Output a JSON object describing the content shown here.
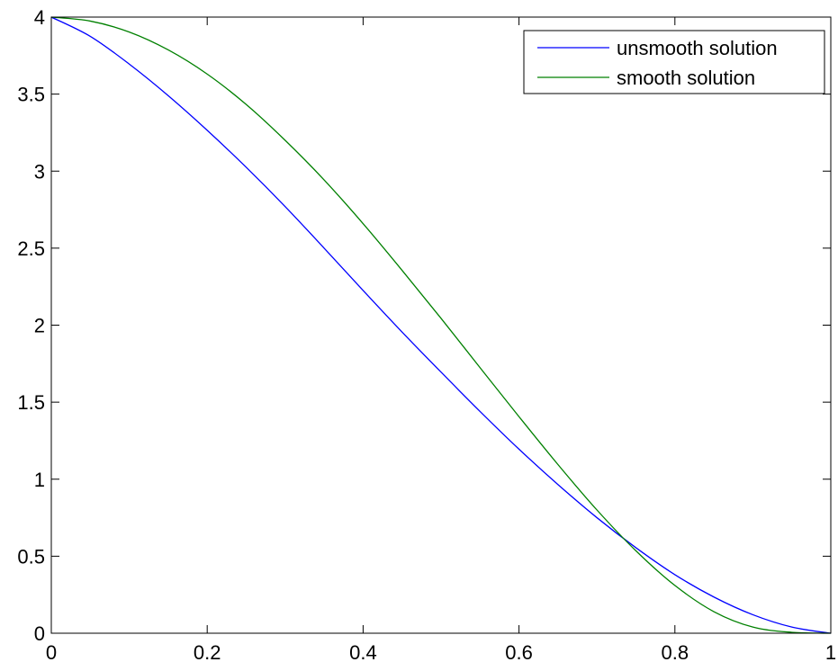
{
  "chart_data": {
    "type": "line",
    "title": "",
    "xlabel": "",
    "ylabel": "",
    "xlim": [
      0,
      1
    ],
    "ylim": [
      0,
      4
    ],
    "xticks": [
      "0",
      "0.2",
      "0.4",
      "0.6",
      "0.8",
      "1"
    ],
    "yticks": [
      "0",
      "0.5",
      "1",
      "1.5",
      "2",
      "2.5",
      "3",
      "3.5",
      "4"
    ],
    "grid": false,
    "legend_position": "top-right",
    "x": [
      0,
      0.05,
      0.1,
      0.15,
      0.2,
      0.25,
      0.3,
      0.35,
      0.4,
      0.45,
      0.5,
      0.55,
      0.6,
      0.65,
      0.7,
      0.75,
      0.8,
      0.85,
      0.9,
      0.95,
      1
    ],
    "series": [
      {
        "name": "unsmooth solution",
        "color": "#0000ff",
        "values": [
          4,
          3.875,
          3.695,
          3.49,
          3.265,
          3.025,
          2.77,
          2.5,
          2.225,
          1.955,
          1.695,
          1.44,
          1.195,
          0.965,
          0.75,
          0.555,
          0.38,
          0.235,
          0.12,
          0.04,
          0
        ]
      },
      {
        "name": "smooth solution",
        "color": "#008000",
        "values": [
          4,
          3.974,
          3.903,
          3.787,
          3.63,
          3.433,
          3.2,
          2.943,
          2.659,
          2.356,
          2.044,
          1.724,
          1.406,
          1.095,
          0.8,
          0.535,
          0.31,
          0.14,
          0.04,
          0.006,
          0
        ]
      }
    ]
  }
}
